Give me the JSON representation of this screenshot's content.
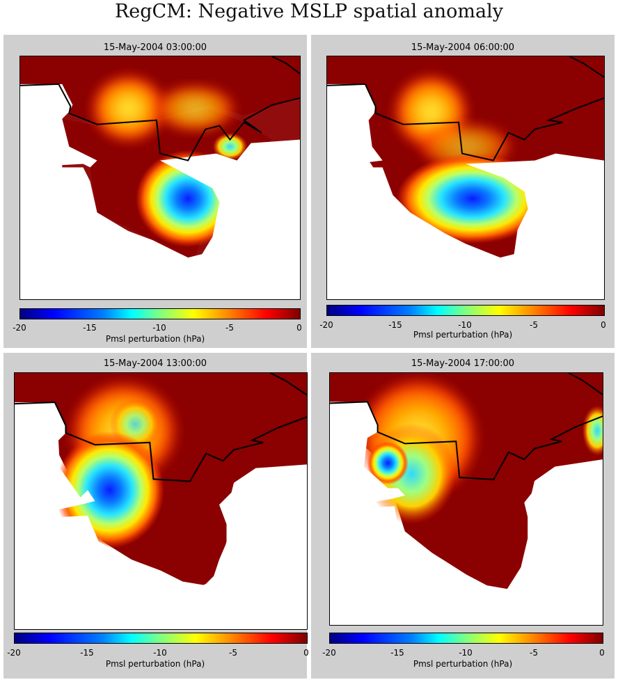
{
  "figure_title": "RegCM: Negative MSLP spatial anomaly",
  "colorbar": {
    "label": "Pmsl perturbation (hPa)",
    "ticks": [
      "-20",
      "-15",
      "-10",
      "-5",
      "0"
    ],
    "range": [
      -20,
      0
    ],
    "colormap": "jet"
  },
  "panels": [
    {
      "title": "15-May-2004 03:00:00",
      "min_anomaly_hPa": -18
    },
    {
      "title": "15-May-2004 06:00:00",
      "min_anomaly_hPa": -19
    },
    {
      "title": "15-May-2004 13:00:00",
      "min_anomaly_hPa": -17
    },
    {
      "title": "15-May-2004 17:00:00",
      "min_anomaly_hPa": -18
    }
  ],
  "colors": {
    "background_gray": "#cfcfcf",
    "land_high": "#8b0000",
    "sea": "#ffffff",
    "border": "#000000"
  }
}
